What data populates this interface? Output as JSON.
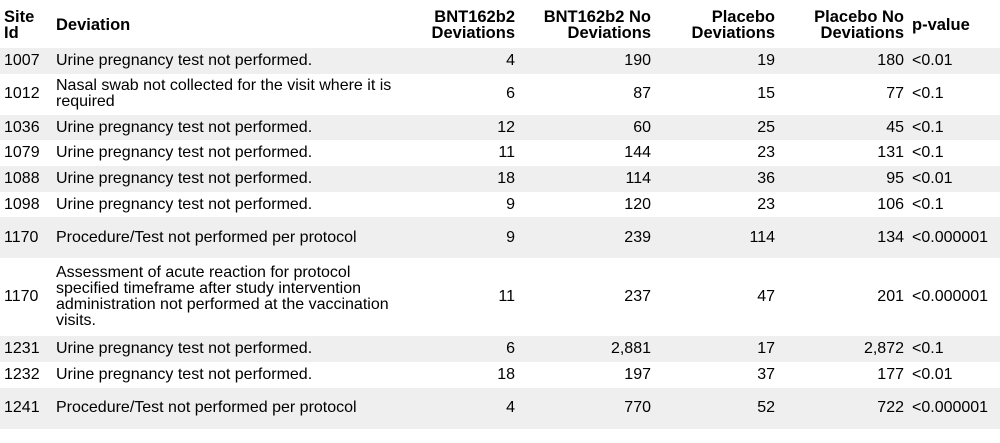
{
  "table": {
    "headers": {
      "site": "Site Id",
      "deviation": "Deviation",
      "bnt_dev": "BNT162b2 Deviations",
      "bnt_no": "BNT162b2 No Deviations",
      "pla_dev": "Placebo Deviations",
      "pla_no": "Placebo No Deviations",
      "pvalue": "p-value"
    },
    "rows": [
      {
        "site": "1007",
        "deviation": "Urine pregnancy test not performed.",
        "bnt_dev": "4",
        "bnt_no": "190",
        "pla_dev": "19",
        "pla_no": "180",
        "pvalue": "<0.01"
      },
      {
        "site": "1012",
        "deviation": "Nasal swab not collected for the visit where it is required",
        "bnt_dev": "6",
        "bnt_no": "87",
        "pla_dev": "15",
        "pla_no": "77",
        "pvalue": "<0.1"
      },
      {
        "site": "1036",
        "deviation": "Urine pregnancy test not performed.",
        "bnt_dev": "12",
        "bnt_no": "60",
        "pla_dev": "25",
        "pla_no": "45",
        "pvalue": "<0.1"
      },
      {
        "site": "1079",
        "deviation": "Urine pregnancy test not performed.",
        "bnt_dev": "11",
        "bnt_no": "144",
        "pla_dev": "23",
        "pla_no": "131",
        "pvalue": "<0.1"
      },
      {
        "site": "1088",
        "deviation": "Urine pregnancy test not performed.",
        "bnt_dev": "18",
        "bnt_no": "114",
        "pla_dev": "36",
        "pla_no": "95",
        "pvalue": "<0.01"
      },
      {
        "site": "1098",
        "deviation": "Urine pregnancy test not performed.",
        "bnt_dev": "9",
        "bnt_no": "120",
        "pla_dev": "23",
        "pla_no": "106",
        "pvalue": "<0.1"
      },
      {
        "site": "1170",
        "deviation": "Procedure/Test not performed per protocol",
        "bnt_dev": "9",
        "bnt_no": "239",
        "pla_dev": "114",
        "pla_no": "134",
        "pvalue": "<0.000001"
      },
      {
        "site": "1170",
        "deviation": "Assessment of acute reaction for protocol specified timeframe after study intervention administration not performed at the vaccination visits.",
        "bnt_dev": "11",
        "bnt_no": "237",
        "pla_dev": "47",
        "pla_no": "201",
        "pvalue": "<0.000001"
      },
      {
        "site": "1231",
        "deviation": "Urine pregnancy test not performed.",
        "bnt_dev": "6",
        "bnt_no": "2,881",
        "pla_dev": "17",
        "pla_no": "2,872",
        "pvalue": "<0.1"
      },
      {
        "site": "1232",
        "deviation": "Urine pregnancy test not performed.",
        "bnt_dev": "18",
        "bnt_no": "197",
        "pla_dev": "37",
        "pla_no": "177",
        "pvalue": "<0.01"
      },
      {
        "site": "1241",
        "deviation": "Procedure/Test not performed per protocol",
        "bnt_dev": "4",
        "bnt_no": "770",
        "pla_dev": "52",
        "pla_no": "722",
        "pvalue": "<0.000001"
      }
    ]
  }
}
